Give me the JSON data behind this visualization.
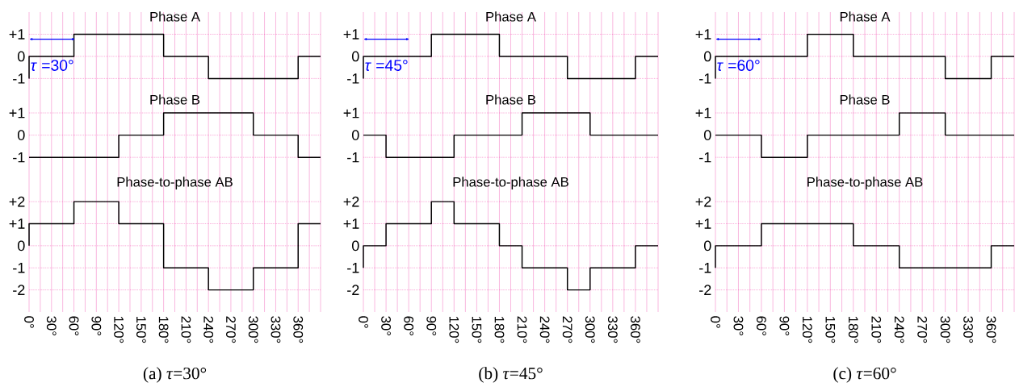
{
  "chart_data": [
    {
      "type": "step",
      "title": "Phase A",
      "x": [
        0,
        0,
        60,
        180,
        240,
        360,
        390
      ],
      "values": [
        -1,
        0,
        1,
        0,
        -1,
        0,
        0
      ],
      "color": "#000000",
      "xlim": [
        0,
        390
      ],
      "ylim": [
        -1.75,
        2
      ],
      "xticks": [
        0,
        {
          "value": 15,
          "label": null
        },
        30,
        {
          "value": 45,
          "label": null
        },
        60,
        {
          "value": 75,
          "label": null
        },
        90,
        {
          "value": 105,
          "label": null
        },
        120,
        {
          "value": 135,
          "label": null
        },
        150,
        {
          "value": 165,
          "label": null
        },
        180,
        {
          "value": 195,
          "label": null
        },
        210,
        {
          "value": 225,
          "label": null
        },
        240,
        {
          "value": 255,
          "label": null
        },
        270,
        {
          "value": 285,
          "label": null
        },
        300,
        {
          "value": 315,
          "label": null
        },
        330,
        {
          "value": 345,
          "label": null
        },
        360,
        {
          "value": 375,
          "label": null
        },
        390
      ],
      "yticks": [
        {
          "value": -1,
          "label": "-1"
        },
        0,
        {
          "value": 1,
          "label": "+1"
        }
      ],
      "grid": true,
      "tick_labels": "y",
      "annotations": [
        "*τ* =30°"
      ]
    },
    {
      "type": "step",
      "title": "Phase B",
      "x": [
        0,
        120,
        180,
        300,
        360,
        390
      ],
      "values": [
        -1,
        0,
        1,
        0,
        -1,
        -1
      ],
      "color": "#000000",
      "xlim": [
        0,
        390
      ],
      "ylim": [
        -1.9,
        1.8
      ],
      "xticks": [
        0,
        {
          "value": 15,
          "label": null
        },
        30,
        {
          "value": 45,
          "label": null
        },
        60,
        {
          "value": 75,
          "label": null
        },
        90,
        {
          "value": 105,
          "label": null
        },
        120,
        {
          "value": 135,
          "label": null
        },
        150,
        {
          "value": 165,
          "label": null
        },
        180,
        {
          "value": 195,
          "label": null
        },
        210,
        {
          "value": 225,
          "label": null
        },
        240,
        {
          "value": 255,
          "label": null
        },
        270,
        {
          "value": 285,
          "label": null
        },
        300,
        {
          "value": 315,
          "label": null
        },
        330,
        {
          "value": 345,
          "label": null
        },
        360,
        {
          "value": 375,
          "label": null
        },
        390
      ],
      "yticks": [
        {
          "value": -1,
          "label": "-1"
        },
        0,
        {
          "value": 1,
          "label": "+1"
        }
      ],
      "grid": true,
      "tick_labels": "y"
    },
    {
      "type": "step",
      "title": "Phase-to-phase AB",
      "x": [
        0,
        0,
        60,
        120,
        180,
        240,
        300,
        360,
        390
      ],
      "values": [
        0,
        1,
        2,
        1,
        -1,
        -2,
        -1,
        1,
        1
      ],
      "color": "#000000",
      "xlim": [
        0,
        390
      ],
      "ylim": [
        -3,
        3.1
      ],
      "xticks": [
        {
          "value": 0,
          "label": "0°"
        },
        {
          "value": 15,
          "label": null
        },
        {
          "value": 30,
          "label": "30°"
        },
        {
          "value": 45,
          "label": null
        },
        {
          "value": 60,
          "label": "60°"
        },
        {
          "value": 75,
          "label": null
        },
        {
          "value": 90,
          "label": "90°"
        },
        {
          "value": 105,
          "label": null
        },
        {
          "value": 120,
          "label": "120°"
        },
        {
          "value": 135,
          "label": null
        },
        {
          "value": 150,
          "label": "150°"
        },
        {
          "value": 165,
          "label": null
        },
        {
          "value": 180,
          "label": "180°"
        },
        {
          "value": 195,
          "label": null
        },
        {
          "value": 210,
          "label": "210°"
        },
        {
          "value": 225,
          "label": null
        },
        {
          "value": 240,
          "label": "240°"
        },
        {
          "value": 255,
          "label": null
        },
        {
          "value": 270,
          "label": "270°"
        },
        {
          "value": 285,
          "label": null
        },
        {
          "value": 300,
          "label": "300°"
        },
        {
          "value": 315,
          "label": null
        },
        {
          "value": 330,
          "label": "330°"
        },
        {
          "value": 345,
          "label": null
        },
        {
          "value": 360,
          "label": "360°"
        },
        {
          "value": 375,
          "label": null
        },
        {
          "value": 390,
          "label": null
        }
      ],
      "yticks": [
        {
          "value": -2,
          "label": "-2"
        },
        {
          "value": -1,
          "label": "-1"
        },
        0,
        {
          "value": 1,
          "label": "+1"
        },
        {
          "value": 2,
          "label": "+2"
        }
      ],
      "grid": true,
      "annotations": [
        "(a) *τ*=30°"
      ]
    },
    {
      "type": "step",
      "title": "Phase A",
      "x": [
        0,
        0,
        90,
        180,
        270,
        360,
        390
      ],
      "values": [
        -1,
        0,
        1,
        0,
        -1,
        0,
        0
      ],
      "color": "#000000",
      "xlim": [
        0,
        390
      ],
      "ylim": [
        -1.75,
        2
      ],
      "xticks": [
        0,
        {
          "value": 15,
          "label": null
        },
        30,
        {
          "value": 45,
          "label": null
        },
        60,
        {
          "value": 75,
          "label": null
        },
        90,
        {
          "value": 105,
          "label": null
        },
        120,
        {
          "value": 135,
          "label": null
        },
        150,
        {
          "value": 165,
          "label": null
        },
        180,
        {
          "value": 195,
          "label": null
        },
        210,
        {
          "value": 225,
          "label": null
        },
        240,
        {
          "value": 255,
          "label": null
        },
        270,
        {
          "value": 285,
          "label": null
        },
        300,
        {
          "value": 315,
          "label": null
        },
        330,
        {
          "value": 345,
          "label": null
        },
        360,
        {
          "value": 375,
          "label": null
        },
        390
      ],
      "yticks": [
        {
          "value": -1,
          "label": "-1"
        },
        0,
        {
          "value": 1,
          "label": "+1"
        }
      ],
      "grid": true,
      "tick_labels": "y",
      "annotations": [
        "*τ* =45°"
      ]
    },
    {
      "type": "step",
      "title": "Phase B",
      "x": [
        0,
        30,
        120,
        210,
        300,
        390
      ],
      "values": [
        0,
        -1,
        0,
        1,
        0,
        0
      ],
      "color": "#000000",
      "xlim": [
        0,
        390
      ],
      "ylim": [
        -1.9,
        1.8
      ],
      "xticks": [
        0,
        {
          "value": 15,
          "label": null
        },
        30,
        {
          "value": 45,
          "label": null
        },
        60,
        {
          "value": 75,
          "label": null
        },
        90,
        {
          "value": 105,
          "label": null
        },
        120,
        {
          "value": 135,
          "label": null
        },
        150,
        {
          "value": 165,
          "label": null
        },
        180,
        {
          "value": 195,
          "label": null
        },
        210,
        {
          "value": 225,
          "label": null
        },
        240,
        {
          "value": 255,
          "label": null
        },
        270,
        {
          "value": 285,
          "label": null
        },
        300,
        {
          "value": 315,
          "label": null
        },
        330,
        {
          "value": 345,
          "label": null
        },
        360,
        {
          "value": 375,
          "label": null
        },
        390
      ],
      "yticks": [
        {
          "value": -1,
          "label": "-1"
        },
        0,
        {
          "value": 1,
          "label": "+1"
        }
      ],
      "grid": true,
      "tick_labels": "y"
    },
    {
      "type": "step",
      "title": "Phase-to-phase AB",
      "x": [
        0,
        0,
        30,
        90,
        120,
        180,
        210,
        270,
        300,
        360,
        390
      ],
      "values": [
        -1,
        0,
        1,
        2,
        1,
        0,
        -1,
        -2,
        -1,
        0,
        0
      ],
      "color": "#000000",
      "xlim": [
        0,
        390
      ],
      "ylim": [
        -3,
        3.1
      ],
      "xticks": [
        {
          "value": 0,
          "label": "0°"
        },
        {
          "value": 15,
          "label": null
        },
        {
          "value": 30,
          "label": "30°"
        },
        {
          "value": 45,
          "label": null
        },
        {
          "value": 60,
          "label": "60°"
        },
        {
          "value": 75,
          "label": null
        },
        {
          "value": 90,
          "label": "90°"
        },
        {
          "value": 105,
          "label": null
        },
        {
          "value": 120,
          "label": "120°"
        },
        {
          "value": 135,
          "label": null
        },
        {
          "value": 150,
          "label": "150°"
        },
        {
          "value": 165,
          "label": null
        },
        {
          "value": 180,
          "label": "180°"
        },
        {
          "value": 195,
          "label": null
        },
        {
          "value": 210,
          "label": "210°"
        },
        {
          "value": 225,
          "label": null
        },
        {
          "value": 240,
          "label": "240°"
        },
        {
          "value": 255,
          "label": null
        },
        {
          "value": 270,
          "label": "270°"
        },
        {
          "value": 285,
          "label": null
        },
        {
          "value": 300,
          "label": "300°"
        },
        {
          "value": 315,
          "label": null
        },
        {
          "value": 330,
          "label": "330°"
        },
        {
          "value": 345,
          "label": null
        },
        {
          "value": 360,
          "label": "360°"
        },
        {
          "value": 375,
          "label": null
        },
        {
          "value": 390,
          "label": null
        }
      ],
      "yticks": [
        {
          "value": -2,
          "label": "-2"
        },
        {
          "value": -1,
          "label": "-1"
        },
        0,
        {
          "value": 1,
          "label": "+1"
        },
        {
          "value": 2,
          "label": "+2"
        }
      ],
      "grid": true,
      "annotations": [
        "(b) *τ*=45°"
      ]
    },
    {
      "type": "step",
      "title": "Phase A",
      "x": [
        0,
        0,
        120,
        180,
        300,
        360,
        390
      ],
      "values": [
        -1,
        0,
        1,
        0,
        -1,
        0,
        0
      ],
      "color": "#000000",
      "xlim": [
        0,
        390
      ],
      "ylim": [
        -1.75,
        2
      ],
      "xticks": [
        0,
        {
          "value": 15,
          "label": null
        },
        30,
        {
          "value": 45,
          "label": null
        },
        60,
        {
          "value": 75,
          "label": null
        },
        90,
        {
          "value": 105,
          "label": null
        },
        120,
        {
          "value": 135,
          "label": null
        },
        150,
        {
          "value": 165,
          "label": null
        },
        180,
        {
          "value": 195,
          "label": null
        },
        210,
        {
          "value": 225,
          "label": null
        },
        240,
        {
          "value": 255,
          "label": null
        },
        270,
        {
          "value": 285,
          "label": null
        },
        300,
        {
          "value": 315,
          "label": null
        },
        330,
        {
          "value": 345,
          "label": null
        },
        360,
        {
          "value": 375,
          "label": null
        },
        390
      ],
      "yticks": [
        {
          "value": -1,
          "label": "-1"
        },
        0,
        {
          "value": 1,
          "label": "+1"
        }
      ],
      "grid": true,
      "tick_labels": "y",
      "annotations": [
        "*τ* =60°"
      ]
    },
    {
      "type": "step",
      "title": "Phase B",
      "x": [
        0,
        60,
        120,
        240,
        300,
        390
      ],
      "values": [
        0,
        -1,
        0,
        1,
        0,
        0
      ],
      "color": "#000000",
      "xlim": [
        0,
        390
      ],
      "ylim": [
        -1.9,
        1.8
      ],
      "xticks": [
        0,
        {
          "value": 15,
          "label": null
        },
        30,
        {
          "value": 45,
          "label": null
        },
        60,
        {
          "value": 75,
          "label": null
        },
        90,
        {
          "value": 105,
          "label": null
        },
        120,
        {
          "value": 135,
          "label": null
        },
        150,
        {
          "value": 165,
          "label": null
        },
        180,
        {
          "value": 195,
          "label": null
        },
        210,
        {
          "value": 225,
          "label": null
        },
        240,
        {
          "value": 255,
          "label": null
        },
        270,
        {
          "value": 285,
          "label": null
        },
        300,
        {
          "value": 315,
          "label": null
        },
        330,
        {
          "value": 345,
          "label": null
        },
        360,
        {
          "value": 375,
          "label": null
        },
        390
      ],
      "yticks": [
        {
          "value": -1,
          "label": "-1"
        },
        0,
        {
          "value": 1,
          "label": "+1"
        }
      ],
      "grid": true,
      "tick_labels": "y"
    },
    {
      "type": "step",
      "title": "Phase-to-phase AB",
      "x": [
        0,
        0,
        60,
        180,
        240,
        360,
        390
      ],
      "values": [
        -1,
        0,
        1,
        0,
        -1,
        0,
        0
      ],
      "color": "#000000",
      "xlim": [
        0,
        390
      ],
      "ylim": [
        -3,
        3.1
      ],
      "xticks": [
        {
          "value": 0,
          "label": "0°"
        },
        {
          "value": 15,
          "label": null
        },
        {
          "value": 30,
          "label": "30°"
        },
        {
          "value": 45,
          "label": null
        },
        {
          "value": 60,
          "label": "60°"
        },
        {
          "value": 75,
          "label": null
        },
        {
          "value": 90,
          "label": "90°"
        },
        {
          "value": 105,
          "label": null
        },
        {
          "value": 120,
          "label": "120°"
        },
        {
          "value": 135,
          "label": null
        },
        {
          "value": 150,
          "label": "150°"
        },
        {
          "value": 165,
          "label": null
        },
        {
          "value": 180,
          "label": "180°"
        },
        {
          "value": 195,
          "label": null
        },
        {
          "value": 210,
          "label": "210°"
        },
        {
          "value": 225,
          "label": null
        },
        {
          "value": 240,
          "label": "240°"
        },
        {
          "value": 255,
          "label": null
        },
        {
          "value": 270,
          "label": "270°"
        },
        {
          "value": 285,
          "label": null
        },
        {
          "value": 300,
          "label": "300°"
        },
        {
          "value": 315,
          "label": null
        },
        {
          "value": 330,
          "label": "330°"
        },
        {
          "value": 345,
          "label": null
        },
        {
          "value": 360,
          "label": "360°"
        },
        {
          "value": 375,
          "label": null
        },
        {
          "value": 390,
          "label": null
        }
      ],
      "yticks": [
        {
          "value": -2,
          "label": "-2"
        },
        {
          "value": -1,
          "label": "-1"
        },
        0,
        {
          "value": 1,
          "label": "+1"
        },
        {
          "value": 2,
          "label": "+2"
        }
      ],
      "grid": true,
      "annotations": [
        "(c) *τ*=60°"
      ]
    }
  ]
}
